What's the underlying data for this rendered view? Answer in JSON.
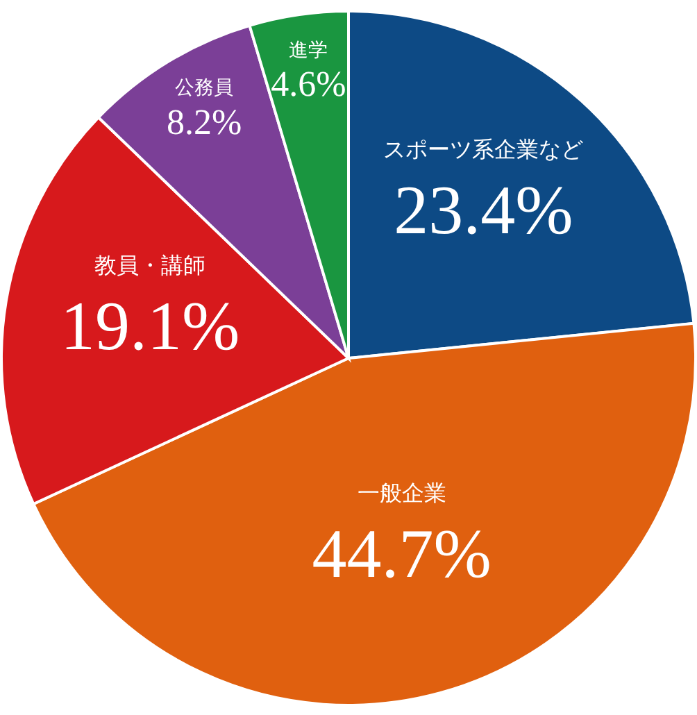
{
  "chart_data": {
    "type": "pie",
    "categories": [
      "スポーツ系企業など",
      "一般企業",
      "教員・講師",
      "公務員",
      "進学"
    ],
    "values": [
      23.4,
      44.7,
      19.1,
      8.2,
      4.6
    ],
    "colors": [
      "#0d4a85",
      "#e0600f",
      "#d7191c",
      "#7b3f97",
      "#1a9640"
    ],
    "value_labels": [
      "23.4%",
      "44.7%",
      "19.1%",
      "8.2%",
      "4.6%"
    ]
  }
}
